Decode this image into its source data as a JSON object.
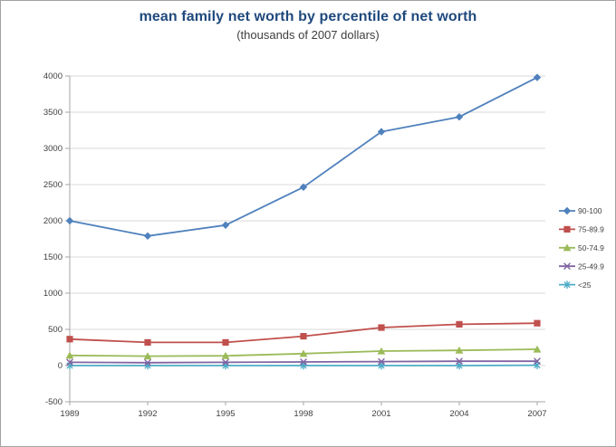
{
  "window": {
    "background": "#ffffff",
    "border_color": "#a3a3a3"
  },
  "chart_data": {
    "type": "line",
    "title": "mean family net worth by percentile of net worth",
    "subtitle": "(thousands of 2007 dollars)",
    "title_color": "#1F497D",
    "subtitle_color": "#3f3f3f",
    "categories": [
      "1989",
      "1992",
      "1995",
      "1998",
      "2001",
      "2004",
      "2007"
    ],
    "series": [
      {
        "name": "90-100",
        "color": "#4F81BD",
        "marker": "diamond",
        "values": [
          2000,
          1790,
          1940,
          2465,
          3230,
          3435,
          3980
        ]
      },
      {
        "name": "75-89.9",
        "color": "#C0504D",
        "marker": "square",
        "values": [
          365,
          320,
          320,
          405,
          525,
          570,
          585
        ]
      },
      {
        "name": "50-74.9",
        "color": "#9BBB59",
        "marker": "triangle",
        "values": [
          140,
          130,
          135,
          165,
          200,
          210,
          225
        ]
      },
      {
        "name": "25-49.9",
        "color": "#8064A2",
        "marker": "x",
        "values": [
          45,
          40,
          45,
          50,
          55,
          60,
          60
        ]
      },
      {
        "name": "<25",
        "color": "#4BACC6",
        "marker": "asterisk",
        "values": [
          0,
          0,
          0,
          0,
          0,
          0,
          5
        ]
      }
    ],
    "xlabel": "",
    "ylabel": "",
    "ylim": [
      -500,
      4000
    ],
    "y_ticks": [
      -500,
      0,
      500,
      1000,
      1500,
      2000,
      2500,
      3000,
      3500,
      4000
    ],
    "grid": true,
    "legend_position": "right",
    "gridline_color": "#D9D9D9",
    "axis_color": "#A6A6A6",
    "tick_label_color": "#3F3F3F",
    "legend_text_color": "#3F3F3F"
  }
}
